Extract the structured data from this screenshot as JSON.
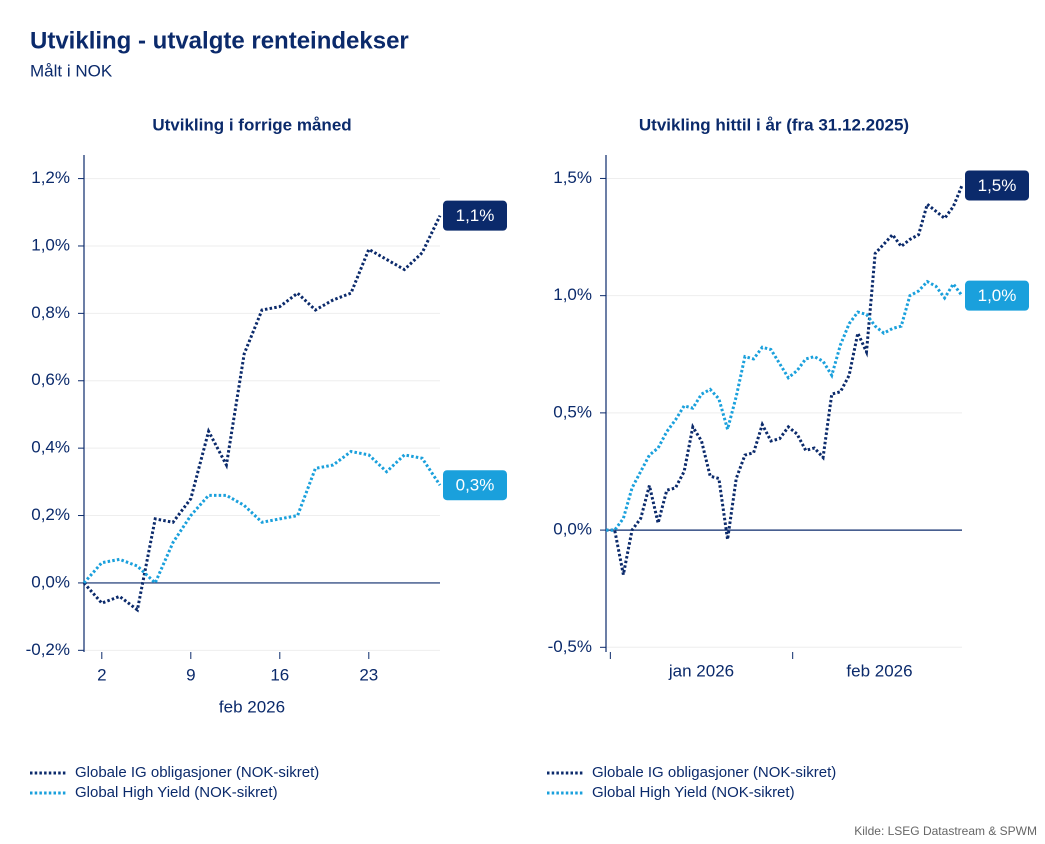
{
  "title": "Utvikling - utvalgte renteindekser",
  "subtitle": "Målt i NOK",
  "source": "Kilde: LSEG Datastream & SPWM",
  "chart_data": [
    {
      "type": "line",
      "title": "Utvikling i forrige måned",
      "categories": [
        null,
        "2",
        null,
        null,
        null,
        null,
        "9",
        null,
        null,
        null,
        null,
        "16",
        null,
        null,
        null,
        null,
        "23",
        null,
        null,
        null,
        null
      ],
      "xlabel": "feb 2026",
      "series": [
        {
          "name": "Globale IG obligasjoner (NOK-sikret)",
          "color": "#0b2a6b",
          "end_label": "1,1%",
          "values": [
            0.0,
            -0.06,
            -0.04,
            -0.08,
            0.19,
            0.18,
            0.25,
            0.45,
            0.35,
            0.68,
            0.81,
            0.82,
            0.86,
            0.81,
            0.84,
            0.86,
            0.99,
            0.96,
            0.93,
            0.98,
            1.09
          ]
        },
        {
          "name": "Global High Yield (NOK-sikret)",
          "color": "#1aa0dc",
          "end_label": "0,3%",
          "values": [
            0.0,
            0.06,
            0.07,
            0.05,
            0.0,
            0.12,
            0.2,
            0.26,
            0.26,
            0.23,
            0.18,
            0.19,
            0.2,
            0.34,
            0.35,
            0.39,
            0.38,
            0.33,
            0.38,
            0.37,
            0.29
          ]
        }
      ],
      "ylim": [
        -0.205,
        1.27
      ],
      "yticks": [
        {
          "value": -0.2,
          "label": "-0,2%"
        },
        {
          "value": 0,
          "label": "0,0%"
        },
        {
          "value": 0.2,
          "label": "0,2%"
        },
        {
          "value": 0.4,
          "label": "0,4%"
        },
        {
          "value": 0.6,
          "label": "0,6%"
        },
        {
          "value": 0.8,
          "label": "0,8%"
        },
        {
          "value": 1.0,
          "label": "1,0%"
        },
        {
          "value": 1.2,
          "label": "1,2%"
        }
      ],
      "grid": true,
      "legend": "bottom"
    },
    {
      "type": "line",
      "title": "Utvikling hittil i år (fra 31.12.2025)",
      "categories": [
        null,
        "jan 2026",
        "jan 2026",
        "jan 2026",
        "jan 2026",
        "jan 2026",
        "jan 2026",
        "jan 2026",
        "jan 2026",
        "jan 2026",
        "jan 2026",
        "jan 2026",
        "jan 2026",
        "jan 2026",
        "jan 2026",
        "jan 2026",
        "jan 2026",
        "jan 2026",
        "jan 2026",
        "jan 2026",
        "jan 2026",
        "jan 2026",
        "feb 2026",
        "feb 2026",
        "feb 2026",
        "feb 2026",
        "feb 2026",
        "feb 2026",
        "feb 2026",
        "feb 2026",
        "feb 2026",
        "feb 2026",
        "feb 2026",
        "feb 2026",
        "feb 2026",
        "feb 2026",
        "feb 2026",
        "feb 2026",
        "feb 2026",
        "feb 2026",
        "feb 2026",
        "feb 2026"
      ],
      "series": [
        {
          "name": "Globale IG obligasjoner (NOK-sikret)",
          "color": "#0b2a6b",
          "end_label": "1,5%",
          "values": [
            0.0,
            0.0,
            -0.19,
            0.0,
            0.05,
            0.19,
            0.03,
            0.17,
            0.18,
            0.25,
            0.44,
            0.38,
            0.23,
            0.22,
            -0.04,
            0.22,
            0.32,
            0.33,
            0.45,
            0.38,
            0.39,
            0.44,
            0.41,
            0.34,
            0.35,
            0.31,
            0.58,
            0.59,
            0.66,
            0.84,
            0.76,
            1.18,
            1.22,
            1.26,
            1.21,
            1.24,
            1.26,
            1.39,
            1.36,
            1.33,
            1.38,
            1.47
          ]
        },
        {
          "name": "Global High Yield (NOK-sikret)",
          "color": "#1aa0dc",
          "end_label": "1,0%",
          "values": [
            0.0,
            0.0,
            0.05,
            0.18,
            0.25,
            0.32,
            0.35,
            0.42,
            0.47,
            0.53,
            0.52,
            0.58,
            0.6,
            0.56,
            0.43,
            0.57,
            0.74,
            0.73,
            0.78,
            0.77,
            0.71,
            0.65,
            0.68,
            0.73,
            0.74,
            0.72,
            0.66,
            0.79,
            0.88,
            0.93,
            0.92,
            0.87,
            0.84,
            0.86,
            0.87,
            1.0,
            1.02,
            1.06,
            1.04,
            0.99,
            1.05,
            1.0
          ]
        }
      ],
      "ylim": [
        -0.52,
        1.6
      ],
      "yticks": [
        {
          "value": -0.5,
          "label": "-0,5%"
        },
        {
          "value": 0,
          "label": "0,0%"
        },
        {
          "value": 0.5,
          "label": "0,5%"
        },
        {
          "value": 1.0,
          "label": "1,0%"
        },
        {
          "value": 1.5,
          "label": "1,5%"
        }
      ],
      "grid": true,
      "legend": "bottom"
    }
  ]
}
